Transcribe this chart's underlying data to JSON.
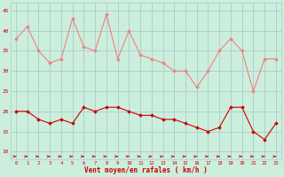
{
  "hours": [
    0,
    1,
    2,
    3,
    4,
    5,
    6,
    7,
    8,
    9,
    10,
    11,
    12,
    13,
    14,
    15,
    16,
    17,
    18,
    19,
    20,
    21,
    22,
    23
  ],
  "rafales": [
    38,
    41,
    35,
    32,
    33,
    43,
    36,
    35,
    44,
    33,
    40,
    34,
    33,
    32,
    30,
    30,
    26,
    30,
    35,
    38,
    35,
    25,
    33,
    33
  ],
  "moyen": [
    20,
    20,
    18,
    17,
    18,
    17,
    21,
    20,
    21,
    21,
    20,
    19,
    19,
    18,
    18,
    17,
    16,
    15,
    16,
    21,
    21,
    15,
    13,
    17
  ],
  "color_rafales": "#f08080",
  "color_moyen": "#cc0000",
  "bg_color": "#cceedd",
  "grid_color": "#aacccc",
  "xlabel": "Vent moyen/en rafales ( km/h )",
  "xlabel_color": "#cc0000",
  "tick_color": "#cc0000",
  "ylim": [
    8,
    47
  ],
  "yticks": [
    10,
    15,
    20,
    25,
    30,
    35,
    40,
    45
  ]
}
